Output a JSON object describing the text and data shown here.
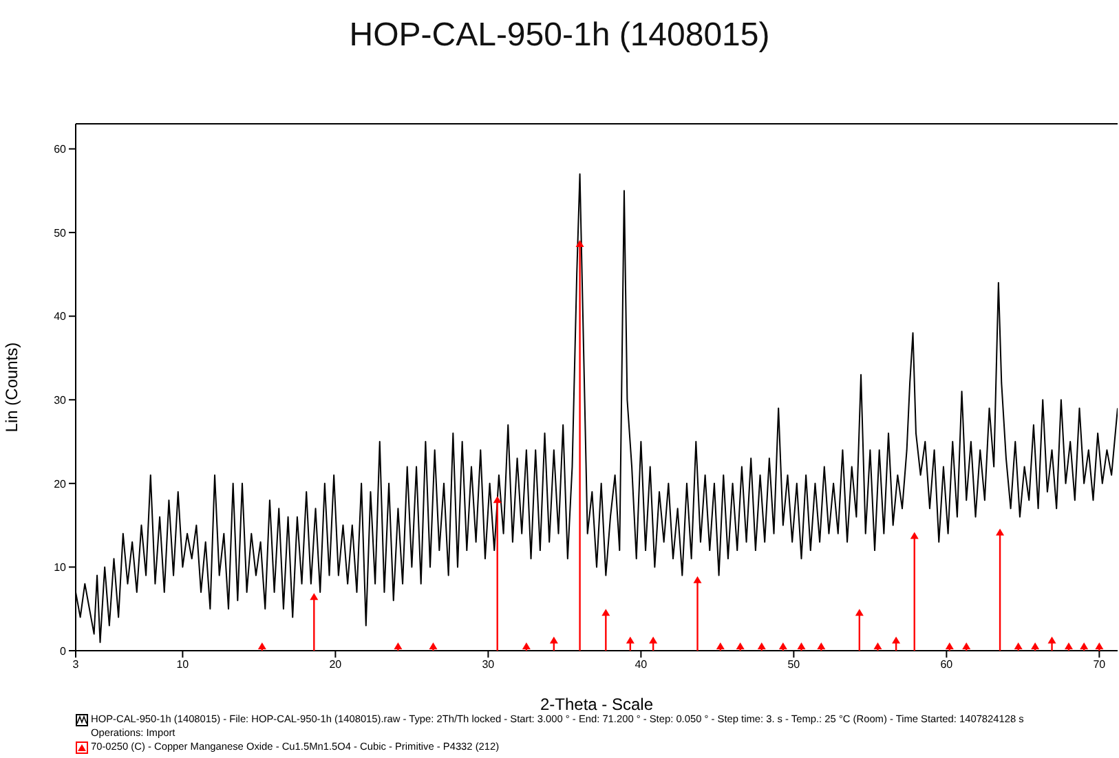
{
  "chart_data": {
    "type": "line",
    "title": "HOP-CAL-950-1h (1408015)",
    "xlabel": "2-Theta - Scale",
    "ylabel": "Lin (Counts)",
    "xlim": [
      3,
      71.2
    ],
    "xticks": [
      3,
      10,
      20,
      30,
      40,
      50,
      60,
      70
    ],
    "ylim": [
      0,
      63
    ],
    "yticks": [
      0,
      10,
      20,
      30,
      40,
      50,
      60
    ],
    "grid": false,
    "legend": "bottom",
    "series": [
      {
        "name": "HOP-CAL-950-1h (1408015) - File: HOP-CAL-950-1h (1408015).raw - Type: 2Th/Th locked - Start: 3.000 ° - End: 71.200 ° - Step: 0.050 ° - Step time: 3. s - Temp.: 25 °C (Room) - Time Started: 1407824128 s\nOperations: Import",
        "color": "#000000",
        "marker": "none",
        "x": [
          3.0,
          3.3,
          3.6,
          3.9,
          4.2,
          4.4,
          4.6,
          4.9,
          5.2,
          5.5,
          5.8,
          6.1,
          6.4,
          6.7,
          7.0,
          7.3,
          7.6,
          7.9,
          8.2,
          8.5,
          8.8,
          9.1,
          9.4,
          9.7,
          10.0,
          10.3,
          10.6,
          10.9,
          11.2,
          11.5,
          11.8,
          12.1,
          12.4,
          12.7,
          13.0,
          13.3,
          13.6,
          13.9,
          14.2,
          14.5,
          14.8,
          15.1,
          15.4,
          15.7,
          16.0,
          16.3,
          16.6,
          16.9,
          17.2,
          17.5,
          17.8,
          18.1,
          18.4,
          18.7,
          19.0,
          19.3,
          19.6,
          19.9,
          20.2,
          20.5,
          20.8,
          21.1,
          21.4,
          21.7,
          22.0,
          22.3,
          22.6,
          22.9,
          23.2,
          23.5,
          23.8,
          24.1,
          24.4,
          24.7,
          25.0,
          25.3,
          25.6,
          25.9,
          26.2,
          26.5,
          26.8,
          27.1,
          27.4,
          27.7,
          28.0,
          28.3,
          28.6,
          28.9,
          29.2,
          29.5,
          29.8,
          30.1,
          30.4,
          30.7,
          31.0,
          31.3,
          31.6,
          31.9,
          32.2,
          32.5,
          32.8,
          33.1,
          33.4,
          33.7,
          34.0,
          34.3,
          34.6,
          34.9,
          35.2,
          35.5,
          35.8,
          36.0,
          36.2,
          36.5,
          36.8,
          37.1,
          37.4,
          37.7,
          38.0,
          38.3,
          38.6,
          38.9,
          39.1,
          39.4,
          39.7,
          40.0,
          40.3,
          40.6,
          40.9,
          41.2,
          41.5,
          41.8,
          42.1,
          42.4,
          42.7,
          43.0,
          43.3,
          43.6,
          43.9,
          44.2,
          44.5,
          44.8,
          45.1,
          45.4,
          45.7,
          46.0,
          46.3,
          46.6,
          46.9,
          47.2,
          47.5,
          47.8,
          48.1,
          48.4,
          48.7,
          49.0,
          49.3,
          49.6,
          49.9,
          50.2,
          50.5,
          50.8,
          51.1,
          51.4,
          51.7,
          52.0,
          52.3,
          52.6,
          52.9,
          53.2,
          53.5,
          53.8,
          54.1,
          54.4,
          54.7,
          55.0,
          55.3,
          55.6,
          55.9,
          56.2,
          56.5,
          56.8,
          57.1,
          57.4,
          57.6,
          57.8,
          58.0,
          58.3,
          58.6,
          58.9,
          59.2,
          59.5,
          59.8,
          60.1,
          60.4,
          60.7,
          61.0,
          61.3,
          61.6,
          61.9,
          62.2,
          62.5,
          62.8,
          63.1,
          63.4,
          63.6,
          63.9,
          64.2,
          64.5,
          64.8,
          65.1,
          65.4,
          65.7,
          66.0,
          66.3,
          66.6,
          66.9,
          67.2,
          67.5,
          67.8,
          68.1,
          68.4,
          68.7,
          69.0,
          69.3,
          69.6,
          69.9,
          70.2,
          70.5,
          70.8,
          71.2
        ],
        "values": [
          7,
          4,
          8,
          5,
          2,
          9,
          1,
          10,
          3,
          11,
          4,
          14,
          8,
          13,
          7,
          15,
          9,
          21,
          8,
          16,
          7,
          18,
          9,
          19,
          10,
          14,
          11,
          15,
          7,
          13,
          5,
          21,
          9,
          14,
          5,
          20,
          6,
          20,
          7,
          14,
          9,
          13,
          5,
          18,
          7,
          17,
          5,
          16,
          4,
          16,
          8,
          19,
          8,
          17,
          7,
          20,
          9,
          21,
          9,
          15,
          8,
          15,
          7,
          20,
          3,
          19,
          8,
          25,
          7,
          20,
          6,
          17,
          8,
          22,
          10,
          22,
          8,
          25,
          10,
          24,
          12,
          20,
          9,
          26,
          10,
          25,
          12,
          22,
          13,
          24,
          11,
          20,
          12,
          21,
          14,
          27,
          13,
          23,
          14,
          24,
          11,
          24,
          12,
          26,
          13,
          24,
          14,
          27,
          11,
          22,
          45,
          57,
          40,
          14,
          19,
          10,
          20,
          9,
          16,
          21,
          12,
          55,
          30,
          22,
          11,
          25,
          12,
          22,
          10,
          19,
          13,
          20,
          11,
          17,
          9,
          20,
          11,
          25,
          13,
          21,
          12,
          20,
          9,
          21,
          11,
          20,
          12,
          22,
          13,
          23,
          12,
          21,
          13,
          23,
          14,
          29,
          15,
          21,
          13,
          20,
          11,
          21,
          12,
          20,
          13,
          22,
          14,
          20,
          14,
          24,
          13,
          22,
          16,
          33,
          14,
          24,
          12,
          24,
          14,
          26,
          15,
          21,
          17,
          24,
          32,
          38,
          26,
          21,
          25,
          17,
          24,
          13,
          22,
          14,
          25,
          16,
          31,
          18,
          25,
          16,
          24,
          18,
          29,
          22,
          44,
          32,
          23,
          17,
          25,
          16,
          22,
          18,
          27,
          17,
          30,
          19,
          24,
          17,
          30,
          20,
          25,
          18,
          29,
          20,
          24,
          18,
          26,
          20,
          24,
          21,
          29
        ]
      },
      {
        "type": "lollipop",
        "name": "70-0250 (C) - Copper Manganese Oxide - Cu1.5Mn1.5O4 - Cubic - Primitive - P4332 (212)",
        "color": "#ff0000",
        "marker": "triangle",
        "x": [
          15.2,
          18.6,
          24.1,
          26.4,
          30.6,
          32.5,
          34.3,
          36.0,
          37.7,
          39.3,
          40.8,
          43.7,
          45.2,
          46.5,
          47.9,
          49.3,
          50.5,
          51.8,
          54.3,
          55.5,
          56.7,
          57.9,
          60.2,
          61.3,
          63.5,
          64.7,
          65.8,
          66.9,
          68.0,
          69.0,
          70.0
        ],
        "values": [
          0.5,
          6.4,
          0.5,
          0.5,
          18,
          0.5,
          1.2,
          48.6,
          4.5,
          1.2,
          1.2,
          8.4,
          0.5,
          0.5,
          0.5,
          0.5,
          0.5,
          0.5,
          4.5,
          0.5,
          1.2,
          13.7,
          0.5,
          0.5,
          14.1,
          0.5,
          0.5,
          1.2,
          0.5,
          0.5,
          0.5
        ]
      }
    ]
  }
}
